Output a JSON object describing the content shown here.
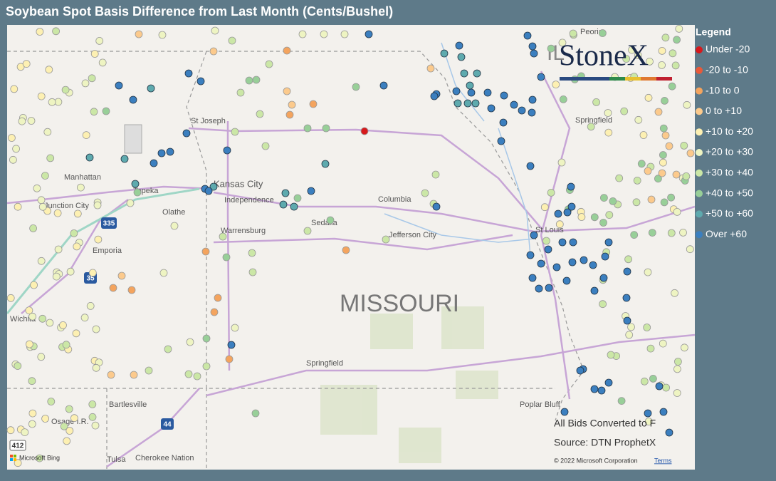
{
  "title": "Soybean Spot Basis Difference from Last Month (Cents/Bushel)",
  "legend": {
    "title": "Legend",
    "items": [
      {
        "label": "Under -20",
        "color": "#d7191c"
      },
      {
        "label": "-20 to -10",
        "color": "#e85a3a"
      },
      {
        "label": "-10 to 0",
        "color": "#f4a45e"
      },
      {
        "label": "0 to +10",
        "color": "#fcca8c"
      },
      {
        "label": "+10 to +20",
        "color": "#fdf0b2"
      },
      {
        "label": "+20 to +30",
        "color": "#eef4c2"
      },
      {
        "label": "+30 to +40",
        "color": "#cbe7a6"
      },
      {
        "label": "+40 to +50",
        "color": "#98cf98"
      },
      {
        "label": "+50 to +60",
        "color": "#5eaaae"
      },
      {
        "label": "Over +60",
        "color": "#3b7fbf"
      }
    ]
  },
  "map": {
    "places": [
      "St Joseph",
      "Manhattan",
      "Topeka",
      "Kansas City",
      "Independence",
      "Junction City",
      "Olathe",
      "Columbia",
      "Warrensburg",
      "Sedalia",
      "Jefferson City",
      "Emporia",
      "Wichita",
      "St Louis",
      "Springfield",
      "Springfield",
      "Peoria",
      "MISSOURI",
      "Bartlesville",
      "Osage I.R.",
      "Tulsa",
      "Cherokee Nation",
      "Poplar Bluff",
      "IL"
    ],
    "shields": [
      "35",
      "335",
      "44",
      "412"
    ]
  },
  "logo": "StoneX",
  "notes": [
    "All Bids Converted to F",
    "Source: DTN ProphetX"
  ],
  "attribution": {
    "provider": "Microsoft Bing",
    "copyright": "© 2022 Microsoft Corporation",
    "terms": "Terms"
  }
}
